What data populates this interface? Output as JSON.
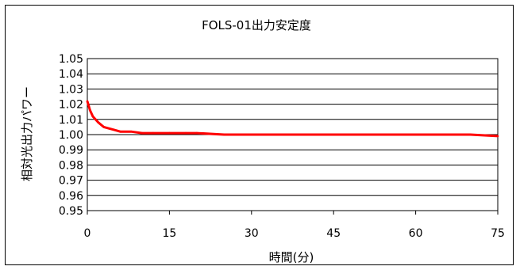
{
  "chart_data": {
    "type": "line",
    "title": "FOLS-01出力安定度",
    "xlabel": "時間(分)",
    "ylabel": "相対光出力パワー",
    "xlim": [
      0,
      75
    ],
    "ylim": [
      0.95,
      1.05
    ],
    "x_ticks": [
      "0",
      "15",
      "30",
      "45",
      "60",
      "75"
    ],
    "y_ticks": [
      "0.95",
      "0.96",
      "0.97",
      "0.98",
      "0.99",
      "1.00",
      "1.01",
      "1.02",
      "1.03",
      "1.04",
      "1.05"
    ],
    "grid": "horizontal",
    "series": [
      {
        "color": "#ff0000",
        "x": [
          0,
          0.5,
          1,
          2,
          3,
          4,
          5,
          6,
          8,
          10,
          12,
          15,
          18,
          20,
          25,
          30,
          35,
          40,
          45,
          50,
          55,
          60,
          65,
          70,
          75
        ],
        "y": [
          1.022,
          1.016,
          1.012,
          1.008,
          1.005,
          1.004,
          1.003,
          1.002,
          1.002,
          1.001,
          1.001,
          1.001,
          1.001,
          1.001,
          1.0,
          1.0,
          1.0,
          1.0,
          1.0,
          1.0,
          1.0,
          1.0,
          1.0,
          1.0,
          0.999
        ]
      }
    ]
  }
}
